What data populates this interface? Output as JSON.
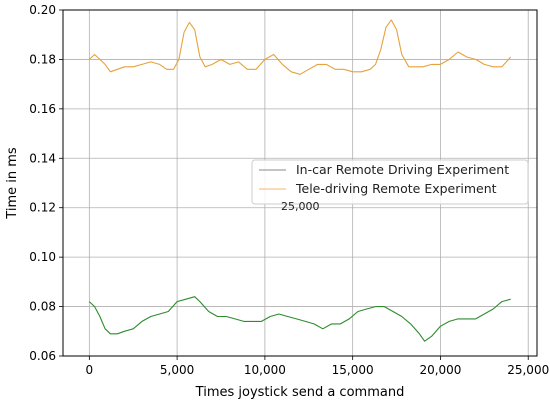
{
  "chart_data": {
    "type": "line",
    "title": "",
    "xlabel": "Times joystick send a command",
    "ylabel": "Time in ms",
    "xlim": [
      -1500,
      25500
    ],
    "ylim": [
      0.06,
      0.2
    ],
    "xticks": [
      0,
      5000,
      10000,
      15000,
      20000,
      25000
    ],
    "xtick_labels": [
      "0",
      "5,000",
      "10,000",
      "15,000",
      "20,000",
      "25,000"
    ],
    "yticks": [
      0.06,
      0.08,
      0.1,
      0.12,
      0.14,
      0.16,
      0.18,
      0.2
    ],
    "ytick_labels": [
      "0.06",
      "0.08",
      "0.10",
      "0.12",
      "0.14",
      "0.16",
      "0.18",
      "0.20"
    ],
    "grid": true,
    "legend_position": "center-right",
    "annotation": "25,000",
    "series": [
      {
        "name": "In-car Remote Driving Experiment",
        "color": "#2e8b2e",
        "legend_color": "#b0b0b0",
        "x": [
          0,
          300,
          600,
          900,
          1200,
          1600,
          2000,
          2500,
          3000,
          3500,
          4000,
          4500,
          5000,
          5500,
          6000,
          6300,
          6800,
          7300,
          7800,
          8300,
          8800,
          9300,
          9800,
          10300,
          10800,
          11300,
          11800,
          12300,
          12800,
          13300,
          13800,
          14300,
          14800,
          15300,
          15800,
          16300,
          16800,
          17300,
          17800,
          18300,
          18800,
          19100,
          19500,
          20000,
          20500,
          21000,
          21500,
          22000,
          22500,
          23000,
          23500,
          24000
        ],
        "y": [
          0.082,
          0.08,
          0.076,
          0.071,
          0.069,
          0.069,
          0.07,
          0.071,
          0.074,
          0.076,
          0.077,
          0.078,
          0.082,
          0.083,
          0.084,
          0.082,
          0.078,
          0.076,
          0.076,
          0.075,
          0.074,
          0.074,
          0.074,
          0.076,
          0.077,
          0.076,
          0.075,
          0.074,
          0.073,
          0.071,
          0.073,
          0.073,
          0.075,
          0.078,
          0.079,
          0.08,
          0.08,
          0.078,
          0.076,
          0.073,
          0.069,
          0.066,
          0.068,
          0.072,
          0.074,
          0.075,
          0.075,
          0.075,
          0.077,
          0.079,
          0.082,
          0.083
        ]
      },
      {
        "name": "Tele-driving Remote Experiment",
        "color": "#e6a23c",
        "legend_color": "#f5cfa0",
        "x": [
          0,
          300,
          600,
          900,
          1200,
          1600,
          2000,
          2500,
          3000,
          3500,
          4000,
          4400,
          4800,
          5100,
          5400,
          5700,
          6000,
          6300,
          6600,
          7000,
          7500,
          8000,
          8500,
          9000,
          9500,
          10000,
          10500,
          11000,
          11500,
          12000,
          12500,
          13000,
          13500,
          14000,
          14500,
          15000,
          15500,
          16000,
          16300,
          16600,
          16900,
          17200,
          17500,
          17800,
          18200,
          18600,
          19000,
          19500,
          20000,
          20500,
          21000,
          21500,
          22000,
          22500,
          23000,
          23500,
          24000
        ],
        "y": [
          0.18,
          0.182,
          0.18,
          0.178,
          0.175,
          0.176,
          0.177,
          0.177,
          0.178,
          0.179,
          0.178,
          0.176,
          0.176,
          0.18,
          0.191,
          0.195,
          0.192,
          0.181,
          0.177,
          0.178,
          0.18,
          0.178,
          0.179,
          0.176,
          0.176,
          0.18,
          0.182,
          0.178,
          0.175,
          0.174,
          0.176,
          0.178,
          0.178,
          0.176,
          0.176,
          0.175,
          0.175,
          0.176,
          0.178,
          0.184,
          0.193,
          0.196,
          0.192,
          0.182,
          0.177,
          0.177,
          0.177,
          0.178,
          0.178,
          0.18,
          0.183,
          0.181,
          0.18,
          0.178,
          0.177,
          0.177,
          0.181
        ]
      }
    ]
  }
}
